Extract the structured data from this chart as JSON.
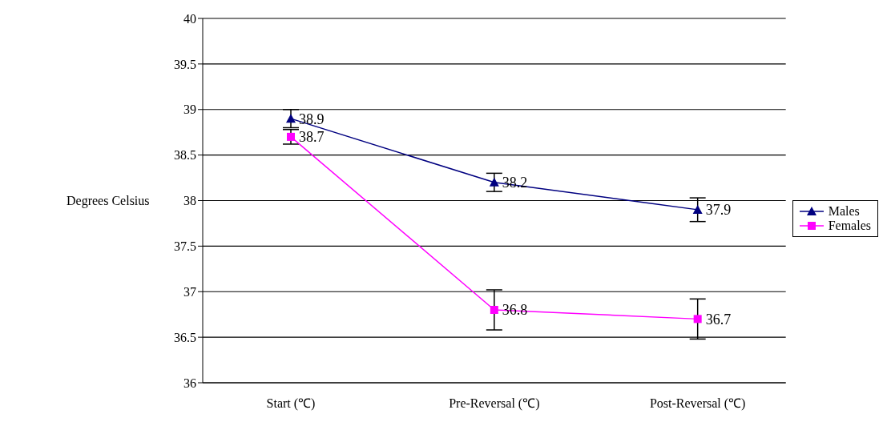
{
  "chart_data": {
    "type": "line",
    "ylabel": "Degrees Celsius",
    "categories": [
      "Start (℃)",
      "Pre-Reversal (℃)",
      "Post-Reversal (℃)"
    ],
    "series": [
      {
        "name": "Males",
        "color": "#000080",
        "values": [
          38.9,
          38.2,
          37.9
        ],
        "errors": [
          0.1,
          0.1,
          0.13
        ],
        "marker": "triangle"
      },
      {
        "name": "Females",
        "color": "#ff00ff",
        "values": [
          38.7,
          36.8,
          36.7
        ],
        "errors": [
          0.08,
          0.22,
          0.22
        ],
        "marker": "square"
      }
    ],
    "ylim": [
      36,
      40
    ],
    "yticks": [
      36,
      36.5,
      37,
      37.5,
      38,
      38.5,
      39,
      39.5,
      40
    ],
    "grid": "y",
    "legend": "right",
    "data_labels": true,
    "line_style": "solid"
  }
}
